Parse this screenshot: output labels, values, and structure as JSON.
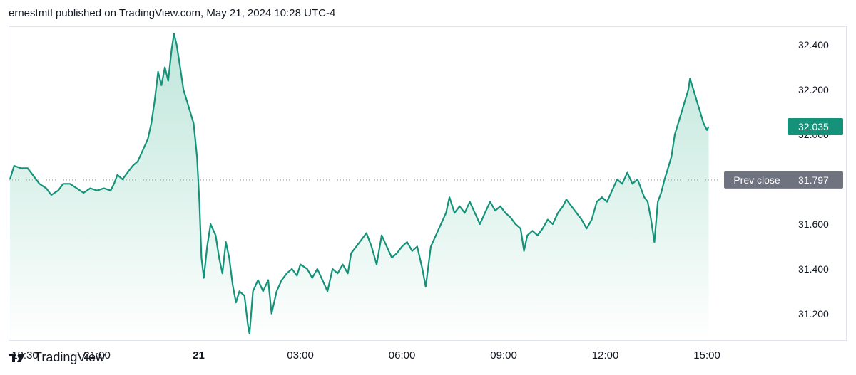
{
  "header": {
    "published_line": "ernestmtl published on TradingView.com, May 21, 2024 10:28 UTC-4"
  },
  "footer": {
    "brand": "TradingView",
    "logo_icon": "tradingview-logo-icon"
  },
  "colors": {
    "line": "#15937a",
    "fill_top": "#b9e4d7",
    "fill_bottom": "#ffffff",
    "last_price_badge": "#15937a",
    "prev_close_badge": "#6f7380",
    "prev_close_line": "#9598a1",
    "axis_text": "#131722",
    "border": "#e0e3eb"
  },
  "price_axis": {
    "ticks": [
      "32.400",
      "32.200",
      "31.600",
      "31.400",
      "31.200"
    ],
    "hidden_tick": "32.000",
    "last_price": "32.035",
    "prev_close_label": "Prev close",
    "prev_close_value": "31.797"
  },
  "time_axis": {
    "labels": [
      {
        "text": "18:30",
        "bold": false
      },
      {
        "text": "21:00",
        "bold": false
      },
      {
        "text": "21",
        "bold": true
      },
      {
        "text": "03:00",
        "bold": false
      },
      {
        "text": "06:00",
        "bold": false
      },
      {
        "text": "09:00",
        "bold": false
      },
      {
        "text": "12:00",
        "bold": false
      },
      {
        "text": "15:00",
        "bold": false
      }
    ]
  },
  "chart_data": {
    "type": "area",
    "title": "",
    "xlabel": "",
    "ylabel": "",
    "x_unit": "hours since 18:00 (May 20, UTC-4)",
    "ylim": [
      31.085,
      32.48
    ],
    "xlim": [
      0.43,
      22.3
    ],
    "prev_close": 31.797,
    "last_price": 32.035,
    "series": [
      {
        "points": [
          [
            0.43,
            31.8
          ],
          [
            0.55,
            31.86
          ],
          [
            0.75,
            31.85
          ],
          [
            0.95,
            31.85
          ],
          [
            1.1,
            31.82
          ],
          [
            1.3,
            31.78
          ],
          [
            1.5,
            31.76
          ],
          [
            1.65,
            31.73
          ],
          [
            1.85,
            31.75
          ],
          [
            2.0,
            31.78
          ],
          [
            2.2,
            31.78
          ],
          [
            2.4,
            31.76
          ],
          [
            2.6,
            31.74
          ],
          [
            2.8,
            31.76
          ],
          [
            3.0,
            31.75
          ],
          [
            3.2,
            31.76
          ],
          [
            3.4,
            31.75
          ],
          [
            3.5,
            31.78
          ],
          [
            3.6,
            31.82
          ],
          [
            3.75,
            31.8
          ],
          [
            3.9,
            31.83
          ],
          [
            4.05,
            31.86
          ],
          [
            4.2,
            31.88
          ],
          [
            4.35,
            31.93
          ],
          [
            4.5,
            31.98
          ],
          [
            4.6,
            32.05
          ],
          [
            4.7,
            32.15
          ],
          [
            4.8,
            32.28
          ],
          [
            4.9,
            32.22
          ],
          [
            5.0,
            32.3
          ],
          [
            5.1,
            32.24
          ],
          [
            5.2,
            32.38
          ],
          [
            5.27,
            32.45
          ],
          [
            5.35,
            32.4
          ],
          [
            5.45,
            32.3
          ],
          [
            5.55,
            32.2
          ],
          [
            5.65,
            32.15
          ],
          [
            5.75,
            32.1
          ],
          [
            5.85,
            32.05
          ],
          [
            5.95,
            31.9
          ],
          [
            6.02,
            31.7
          ],
          [
            6.08,
            31.45
          ],
          [
            6.15,
            31.36
          ],
          [
            6.25,
            31.5
          ],
          [
            6.35,
            31.6
          ],
          [
            6.5,
            31.55
          ],
          [
            6.6,
            31.45
          ],
          [
            6.7,
            31.38
          ],
          [
            6.8,
            31.52
          ],
          [
            6.9,
            31.45
          ],
          [
            7.0,
            31.33
          ],
          [
            7.1,
            31.25
          ],
          [
            7.2,
            31.3
          ],
          [
            7.35,
            31.28
          ],
          [
            7.45,
            31.15
          ],
          [
            7.5,
            31.11
          ],
          [
            7.6,
            31.3
          ],
          [
            7.75,
            31.35
          ],
          [
            7.9,
            31.3
          ],
          [
            8.05,
            31.35
          ],
          [
            8.15,
            31.2
          ],
          [
            8.3,
            31.3
          ],
          [
            8.45,
            31.35
          ],
          [
            8.6,
            31.38
          ],
          [
            8.75,
            31.4
          ],
          [
            8.9,
            31.37
          ],
          [
            9.0,
            31.42
          ],
          [
            9.2,
            31.4
          ],
          [
            9.35,
            31.36
          ],
          [
            9.5,
            31.4
          ],
          [
            9.65,
            31.35
          ],
          [
            9.8,
            31.3
          ],
          [
            9.95,
            31.4
          ],
          [
            10.1,
            31.38
          ],
          [
            10.25,
            31.42
          ],
          [
            10.4,
            31.38
          ],
          [
            10.5,
            31.47
          ],
          [
            10.65,
            31.5
          ],
          [
            10.8,
            31.53
          ],
          [
            10.95,
            31.56
          ],
          [
            11.1,
            31.5
          ],
          [
            11.25,
            31.42
          ],
          [
            11.4,
            31.55
          ],
          [
            11.55,
            31.5
          ],
          [
            11.7,
            31.45
          ],
          [
            11.85,
            31.47
          ],
          [
            12.0,
            31.5
          ],
          [
            12.15,
            31.52
          ],
          [
            12.3,
            31.48
          ],
          [
            12.45,
            31.5
          ],
          [
            12.6,
            31.4
          ],
          [
            12.7,
            31.32
          ],
          [
            12.85,
            31.5
          ],
          [
            13.0,
            31.55
          ],
          [
            13.15,
            31.6
          ],
          [
            13.3,
            31.65
          ],
          [
            13.4,
            31.72
          ],
          [
            13.55,
            31.65
          ],
          [
            13.7,
            31.68
          ],
          [
            13.85,
            31.65
          ],
          [
            14.0,
            31.7
          ],
          [
            14.15,
            31.65
          ],
          [
            14.3,
            31.6
          ],
          [
            14.45,
            31.65
          ],
          [
            14.6,
            31.7
          ],
          [
            14.75,
            31.66
          ],
          [
            14.9,
            31.68
          ],
          [
            15.05,
            31.65
          ],
          [
            15.2,
            31.63
          ],
          [
            15.35,
            31.6
          ],
          [
            15.5,
            31.58
          ],
          [
            15.6,
            31.48
          ],
          [
            15.7,
            31.55
          ],
          [
            15.85,
            31.57
          ],
          [
            16.0,
            31.55
          ],
          [
            16.15,
            31.58
          ],
          [
            16.3,
            31.62
          ],
          [
            16.45,
            31.6
          ],
          [
            16.6,
            31.65
          ],
          [
            16.75,
            31.68
          ],
          [
            16.85,
            31.71
          ],
          [
            17.0,
            31.68
          ],
          [
            17.15,
            31.65
          ],
          [
            17.3,
            31.62
          ],
          [
            17.45,
            31.58
          ],
          [
            17.6,
            31.62
          ],
          [
            17.75,
            31.7
          ],
          [
            17.9,
            31.72
          ],
          [
            18.05,
            31.7
          ],
          [
            18.2,
            31.75
          ],
          [
            18.35,
            31.8
          ],
          [
            18.5,
            31.78
          ],
          [
            18.65,
            31.83
          ],
          [
            18.8,
            31.78
          ],
          [
            18.95,
            31.8
          ],
          [
            19.05,
            31.76
          ],
          [
            19.15,
            31.72
          ],
          [
            19.25,
            31.7
          ],
          [
            19.35,
            31.62
          ],
          [
            19.45,
            31.52
          ],
          [
            19.55,
            31.7
          ],
          [
            19.65,
            31.74
          ],
          [
            19.75,
            31.8
          ],
          [
            19.85,
            31.85
          ],
          [
            19.95,
            31.9
          ],
          [
            20.05,
            32.0
          ],
          [
            20.15,
            32.05
          ],
          [
            20.25,
            32.1
          ],
          [
            20.35,
            32.15
          ],
          [
            20.45,
            32.2
          ],
          [
            20.5,
            32.25
          ],
          [
            20.6,
            32.2
          ],
          [
            20.7,
            32.15
          ],
          [
            20.8,
            32.1
          ],
          [
            20.9,
            32.05
          ],
          [
            21.0,
            32.02
          ],
          [
            21.05,
            32.035
          ]
        ]
      }
    ]
  }
}
